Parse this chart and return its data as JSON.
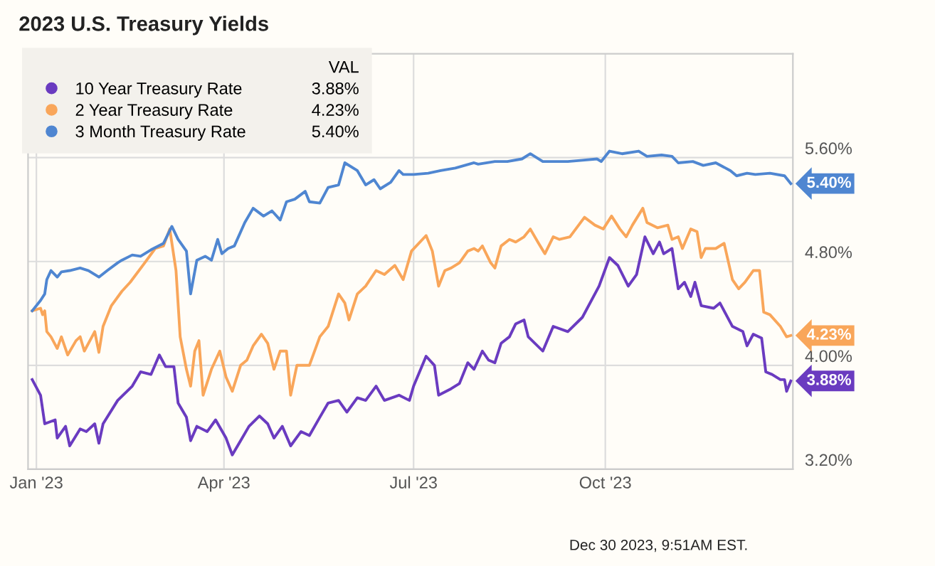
{
  "chart_data": {
    "type": "line",
    "title": "2023 U.S. Treasury Yields",
    "legend_title": "VAL",
    "legend": "top left",
    "grid": true,
    "marker": "none",
    "line_style": "solid",
    "xlim": [
      "2022-12-28",
      "2023-12-30"
    ],
    "xticks": [
      {
        "value": "2023-01-01",
        "label": "Jan '23"
      },
      {
        "value": "2023-04-01",
        "label": "Apr '23"
      },
      {
        "value": "2023-07-01",
        "label": "Jul '23"
      },
      {
        "value": "2023-10-01",
        "label": "Oct '23"
      }
    ],
    "ylim": [
      3.2,
      6.4
    ],
    "yticks": [
      {
        "value": 3.2,
        "label": "3.20%"
      },
      {
        "value": 4.0,
        "label": "4.00%"
      },
      {
        "value": 4.8,
        "label": "4.80%"
      },
      {
        "value": 5.6,
        "label": "5.60%"
      }
    ],
    "annotations": [
      "Dec 30 2023, 9:51AM EST."
    ],
    "series": [
      {
        "name": "10 Year Treasury Rate",
        "color": "#6a3bc0",
        "x": [
          "2022-12-30",
          "2023-01-03",
          "2023-01-05",
          "2023-01-10",
          "2023-01-11",
          "2023-01-15",
          "2023-01-17",
          "2023-01-22",
          "2023-01-25",
          "2023-01-29",
          "2023-01-31",
          "2023-02-02",
          "2023-02-09",
          "2023-02-16",
          "2023-02-20",
          "2023-02-25",
          "2023-03-01",
          "2023-03-04",
          "2023-03-08",
          "2023-03-10",
          "2023-03-14",
          "2023-03-16",
          "2023-03-19",
          "2023-03-24",
          "2023-03-28",
          "2023-04-02",
          "2023-04-05",
          "2023-04-09",
          "2023-04-13",
          "2023-04-18",
          "2023-04-22",
          "2023-04-25",
          "2023-04-29",
          "2023-05-03",
          "2023-05-08",
          "2023-05-12",
          "2023-05-17",
          "2023-05-21",
          "2023-05-26",
          "2023-05-30",
          "2023-06-04",
          "2023-06-08",
          "2023-06-13",
          "2023-06-17",
          "2023-06-24",
          "2023-06-29",
          "2023-07-01",
          "2023-07-07",
          "2023-07-11",
          "2023-07-13",
          "2023-07-19",
          "2023-07-23",
          "2023-07-27",
          "2023-07-30",
          "2023-08-03",
          "2023-08-06",
          "2023-08-09",
          "2023-08-12",
          "2023-08-16",
          "2023-08-19",
          "2023-08-23",
          "2023-08-25",
          "2023-09-01",
          "2023-09-06",
          "2023-09-13",
          "2023-09-20",
          "2023-09-28",
          "2023-10-03",
          "2023-10-07",
          "2023-10-12",
          "2023-10-16",
          "2023-10-20",
          "2023-10-24",
          "2023-10-27",
          "2023-10-29",
          "2023-11-02",
          "2023-11-05",
          "2023-11-08",
          "2023-11-11",
          "2023-11-13",
          "2023-11-16",
          "2023-11-22",
          "2023-11-25",
          "2023-12-01",
          "2023-12-06",
          "2023-12-08",
          "2023-12-11",
          "2023-12-15",
          "2023-12-17",
          "2023-12-20",
          "2023-12-24",
          "2023-12-26",
          "2023-12-27",
          "2023-12-29"
        ],
        "values": [
          3.89,
          3.77,
          3.55,
          3.58,
          3.44,
          3.53,
          3.38,
          3.51,
          3.49,
          3.55,
          3.4,
          3.55,
          3.73,
          3.84,
          3.95,
          3.93,
          4.08,
          3.99,
          3.99,
          3.71,
          3.6,
          3.42,
          3.53,
          3.49,
          3.58,
          3.44,
          3.31,
          3.42,
          3.53,
          3.61,
          3.55,
          3.44,
          3.53,
          3.38,
          3.49,
          3.46,
          3.6,
          3.71,
          3.73,
          3.64,
          3.75,
          3.73,
          3.84,
          3.73,
          3.77,
          3.73,
          3.84,
          4.07,
          4.0,
          3.77,
          3.82,
          3.86,
          4.02,
          3.97,
          4.11,
          4.04,
          4.02,
          4.17,
          4.22,
          4.32,
          4.35,
          4.22,
          4.11,
          4.3,
          4.26,
          4.37,
          4.61,
          4.83,
          4.77,
          4.61,
          4.7,
          4.99,
          4.86,
          4.95,
          4.86,
          4.9,
          4.59,
          4.64,
          4.53,
          4.64,
          4.46,
          4.44,
          4.48,
          4.3,
          4.26,
          4.15,
          4.24,
          4.21,
          3.95,
          3.93,
          3.89,
          3.89,
          3.8,
          3.88
        ],
        "value_labels": [
          null,
          null,
          null,
          null,
          null,
          null,
          null,
          null,
          null,
          null,
          null,
          null,
          null,
          null,
          null,
          null,
          null,
          null,
          null,
          null,
          null,
          null,
          null,
          null,
          null,
          null,
          null,
          null,
          null,
          null,
          null,
          null,
          null,
          null,
          null,
          null,
          null,
          null,
          null,
          null,
          null,
          null,
          null,
          null,
          null,
          null,
          null,
          null,
          null,
          null,
          null,
          null,
          null,
          null,
          null,
          null,
          null,
          null,
          null,
          null,
          null,
          null,
          null,
          null,
          null,
          null,
          null,
          null,
          null,
          null,
          null,
          null,
          null,
          null,
          null,
          null,
          null,
          null,
          null,
          null,
          null,
          null,
          null,
          null,
          null,
          null,
          null,
          null,
          null,
          null,
          null,
          null,
          null,
          "3.88%"
        ]
      },
      {
        "name": "2 Year Treasury Rate",
        "color": "#f9a65a",
        "x": [
          "2022-12-30",
          "2023-01-03",
          "2023-01-04",
          "2023-01-05",
          "2023-01-06",
          "2023-01-08",
          "2023-01-11",
          "2023-01-13",
          "2023-01-16",
          "2023-01-20",
          "2023-01-22",
          "2023-01-24",
          "2023-01-29",
          "2023-01-31",
          "2023-02-02",
          "2023-02-06",
          "2023-02-11",
          "2023-02-15",
          "2023-02-22",
          "2023-02-27",
          "2023-03-03",
          "2023-03-06",
          "2023-03-09",
          "2023-03-11",
          "2023-03-14",
          "2023-03-16",
          "2023-03-18",
          "2023-03-20",
          "2023-03-22",
          "2023-03-26",
          "2023-03-30",
          "2023-04-02",
          "2023-04-05",
          "2023-04-09",
          "2023-04-12",
          "2023-04-15",
          "2023-04-19",
          "2023-04-22",
          "2023-04-25",
          "2023-04-28",
          "2023-05-01",
          "2023-05-03",
          "2023-05-06",
          "2023-05-12",
          "2023-05-17",
          "2023-05-21",
          "2023-05-26",
          "2023-05-29",
          "2023-05-31",
          "2023-06-04",
          "2023-06-08",
          "2023-06-13",
          "2023-06-17",
          "2023-06-22",
          "2023-06-26",
          "2023-06-30",
          "2023-07-07",
          "2023-07-10",
          "2023-07-13",
          "2023-07-16",
          "2023-07-19",
          "2023-07-23",
          "2023-07-27",
          "2023-07-30",
          "2023-08-01",
          "2023-08-03",
          "2023-08-07",
          "2023-08-09",
          "2023-08-12",
          "2023-08-16",
          "2023-08-19",
          "2023-08-23",
          "2023-08-26",
          "2023-08-30",
          "2023-09-02",
          "2023-09-06",
          "2023-09-09",
          "2023-09-14",
          "2023-09-21",
          "2023-09-26",
          "2023-09-30",
          "2023-10-04",
          "2023-10-08",
          "2023-10-11",
          "2023-10-14",
          "2023-10-19",
          "2023-10-21",
          "2023-10-26",
          "2023-10-31",
          "2023-11-02",
          "2023-11-05",
          "2023-11-07",
          "2023-11-11",
          "2023-11-14",
          "2023-11-16",
          "2023-11-18",
          "2023-11-23",
          "2023-11-27",
          "2023-12-01",
          "2023-12-04",
          "2023-12-07",
          "2023-12-11",
          "2023-12-14",
          "2023-12-16",
          "2023-12-19",
          "2023-12-24",
          "2023-12-27",
          "2023-12-29"
        ],
        "values": [
          4.42,
          4.44,
          4.39,
          4.42,
          4.26,
          4.22,
          4.13,
          4.22,
          4.08,
          4.19,
          4.22,
          4.11,
          4.26,
          4.1,
          4.3,
          4.46,
          4.57,
          4.64,
          4.79,
          4.9,
          4.92,
          5.05,
          4.73,
          4.22,
          3.97,
          3.84,
          4.11,
          4.19,
          3.77,
          3.97,
          4.11,
          3.91,
          3.8,
          4.0,
          4.04,
          4.15,
          4.24,
          4.17,
          3.97,
          4.11,
          4.11,
          3.77,
          4.0,
          4.0,
          4.22,
          4.3,
          4.55,
          4.48,
          4.35,
          4.55,
          4.61,
          4.73,
          4.7,
          4.77,
          4.66,
          4.88,
          5.0,
          4.88,
          4.61,
          4.73,
          4.75,
          4.79,
          4.88,
          4.9,
          4.88,
          4.92,
          4.79,
          4.75,
          4.92,
          4.97,
          4.95,
          4.99,
          5.05,
          4.94,
          4.86,
          4.99,
          4.97,
          4.99,
          5.14,
          5.08,
          5.05,
          5.15,
          5.05,
          4.99,
          5.08,
          5.21,
          5.1,
          5.06,
          5.08,
          4.97,
          4.99,
          4.9,
          5.05,
          5.03,
          4.83,
          4.9,
          4.9,
          4.94,
          4.66,
          4.59,
          4.64,
          4.73,
          4.73,
          4.41,
          4.39,
          4.3,
          4.22,
          4.23
        ],
        "value_labels": [
          null,
          null,
          null,
          null,
          null,
          null,
          null,
          null,
          null,
          null,
          null,
          null,
          null,
          null,
          null,
          null,
          null,
          null,
          null,
          null,
          null,
          null,
          null,
          null,
          null,
          null,
          null,
          null,
          null,
          null,
          null,
          null,
          null,
          null,
          null,
          null,
          null,
          null,
          null,
          null,
          null,
          null,
          null,
          null,
          null,
          null,
          null,
          null,
          null,
          null,
          null,
          null,
          null,
          null,
          null,
          null,
          null,
          null,
          null,
          null,
          null,
          null,
          null,
          null,
          null,
          null,
          null,
          null,
          null,
          null,
          null,
          null,
          null,
          null,
          null,
          null,
          null,
          null,
          null,
          null,
          null,
          null,
          null,
          null,
          null,
          null,
          null,
          null,
          null,
          null,
          null,
          null,
          null,
          null,
          null,
          null,
          null,
          null,
          null,
          null,
          null,
          null,
          null,
          null,
          null,
          null,
          null,
          "4.23%"
        ]
      },
      {
        "name": "3 Month Treasury Rate",
        "color": "#4f86d1",
        "x": [
          "2022-12-30",
          "2023-01-03",
          "2023-01-05",
          "2023-01-06",
          "2023-01-08",
          "2023-01-11",
          "2023-01-13",
          "2023-01-17",
          "2023-01-22",
          "2023-01-26",
          "2023-01-31",
          "2023-02-04",
          "2023-02-09",
          "2023-02-11",
          "2023-02-16",
          "2023-02-20",
          "2023-02-25",
          "2023-03-03",
          "2023-03-07",
          "2023-03-10",
          "2023-03-14",
          "2023-03-16",
          "2023-03-19",
          "2023-03-23",
          "2023-03-26",
          "2023-03-29",
          "2023-03-31",
          "2023-04-03",
          "2023-04-06",
          "2023-04-11",
          "2023-04-15",
          "2023-04-20",
          "2023-04-24",
          "2023-04-28",
          "2023-05-01",
          "2023-05-05",
          "2023-05-10",
          "2023-05-12",
          "2023-05-17",
          "2023-05-21",
          "2023-05-26",
          "2023-05-29",
          "2023-06-04",
          "2023-06-08",
          "2023-06-12",
          "2023-06-15",
          "2023-06-20",
          "2023-06-24",
          "2023-06-26",
          "2023-07-01",
          "2023-07-08",
          "2023-07-14",
          "2023-07-21",
          "2023-07-30",
          "2023-08-01",
          "2023-08-09",
          "2023-08-15",
          "2023-08-22",
          "2023-08-26",
          "2023-09-01",
          "2023-09-06",
          "2023-09-13",
          "2023-09-20",
          "2023-09-27",
          "2023-09-29",
          "2023-10-03",
          "2023-10-09",
          "2023-10-17",
          "2023-10-21",
          "2023-10-28",
          "2023-11-02",
          "2023-11-05",
          "2023-11-12",
          "2023-11-17",
          "2023-11-23",
          "2023-11-30",
          "2023-12-03",
          "2023-12-08",
          "2023-12-12",
          "2023-12-19",
          "2023-12-26",
          "2023-12-29"
        ],
        "values": [
          4.42,
          4.5,
          4.55,
          4.66,
          4.73,
          4.68,
          4.72,
          4.73,
          4.75,
          4.73,
          4.68,
          4.73,
          4.79,
          4.81,
          4.85,
          4.84,
          4.89,
          4.94,
          5.07,
          4.97,
          4.88,
          4.55,
          4.81,
          4.84,
          4.81,
          4.97,
          4.86,
          4.9,
          4.92,
          5.1,
          5.21,
          5.15,
          5.19,
          5.12,
          5.26,
          5.28,
          5.34,
          5.26,
          5.25,
          5.37,
          5.39,
          5.56,
          5.5,
          5.39,
          5.43,
          5.36,
          5.41,
          5.5,
          5.47,
          5.47,
          5.48,
          5.5,
          5.52,
          5.56,
          5.55,
          5.57,
          5.57,
          5.59,
          5.63,
          5.57,
          5.57,
          5.57,
          5.58,
          5.59,
          5.57,
          5.65,
          5.63,
          5.65,
          5.61,
          5.62,
          5.61,
          5.56,
          5.57,
          5.54,
          5.56,
          5.5,
          5.46,
          5.48,
          5.47,
          5.48,
          5.46,
          5.4
        ],
        "value_labels": [
          null,
          null,
          null,
          null,
          null,
          null,
          null,
          null,
          null,
          null,
          null,
          null,
          null,
          null,
          null,
          null,
          null,
          null,
          null,
          null,
          null,
          null,
          null,
          null,
          null,
          null,
          null,
          null,
          null,
          null,
          null,
          null,
          null,
          null,
          null,
          null,
          null,
          null,
          null,
          null,
          null,
          null,
          null,
          null,
          null,
          null,
          null,
          null,
          null,
          null,
          null,
          null,
          null,
          null,
          null,
          null,
          null,
          null,
          null,
          null,
          null,
          null,
          null,
          null,
          null,
          null,
          null,
          null,
          null,
          null,
          null,
          null,
          null,
          null,
          null,
          null,
          null,
          null,
          null,
          null,
          null,
          "5.40%"
        ]
      }
    ]
  }
}
